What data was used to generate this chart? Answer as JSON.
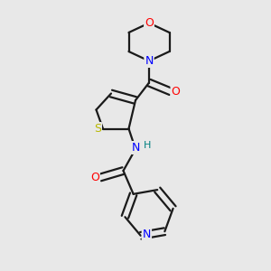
{
  "background_color": "#e8e8e8",
  "bond_color": "#1a1a1a",
  "atom_colors": {
    "O": "#ff0000",
    "N": "#0000ff",
    "S": "#b8b800",
    "H": "#008080"
  },
  "figsize": [
    3.0,
    3.0
  ],
  "dpi": 100
}
